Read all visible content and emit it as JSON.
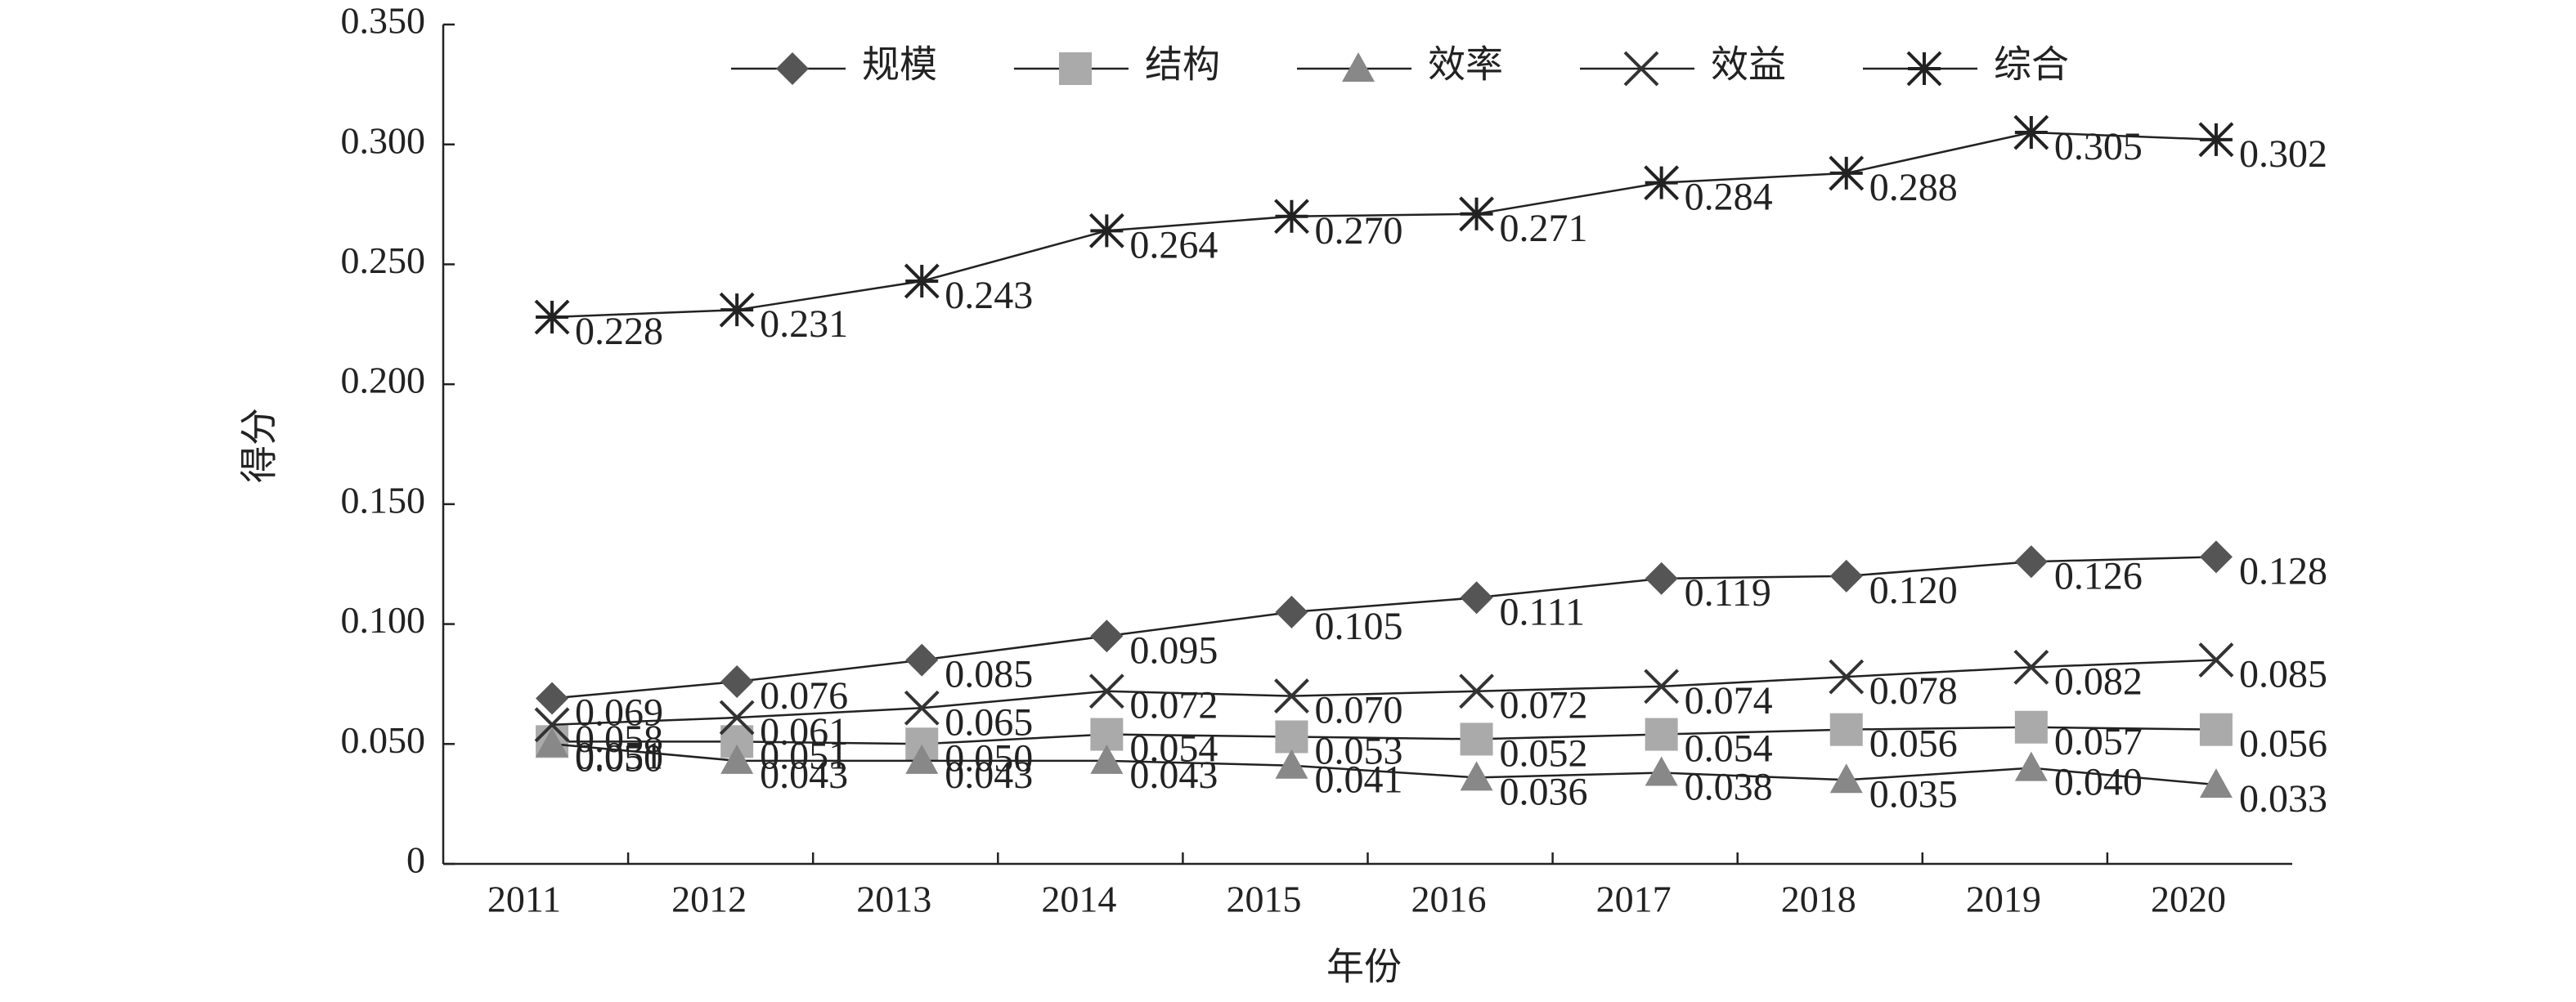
{
  "chart_data": {
    "type": "line",
    "x_label": "年份",
    "y_label": "得分",
    "categories": [
      "2011",
      "2012",
      "2013",
      "2014",
      "2015",
      "2016",
      "2017",
      "2018",
      "2019",
      "2020"
    ],
    "ylim": [
      0,
      0.35
    ],
    "yticks": [
      0,
      {
        "value": 0.05,
        "label": "0.050"
      },
      {
        "value": 0.1,
        "label": "0.100"
      },
      {
        "value": 0.15,
        "label": "0.150"
      },
      {
        "value": 0.2,
        "label": "0.200"
      },
      {
        "value": 0.25,
        "label": "0.250"
      },
      {
        "value": 0.3,
        "label": "0.300"
      },
      {
        "value": 0.35,
        "label": "0.350"
      }
    ],
    "legend": "top",
    "series": [
      {
        "name": "规模",
        "color": "#555555",
        "marker": "diamond",
        "values": [
          0.069,
          0.076,
          0.085,
          0.095,
          0.105,
          0.111,
          0.119,
          0.12,
          0.126,
          0.128
        ],
        "value_labels": [
          "0.069",
          "0.076",
          "0.085",
          "0.095",
          "0.105",
          "0.111",
          "0.119",
          "0.120",
          "0.126",
          "0.128"
        ]
      },
      {
        "name": "结构",
        "color": "#aaaaaa",
        "marker": "square",
        "values": [
          0.051,
          0.051,
          0.05,
          0.054,
          0.053,
          0.052,
          0.054,
          0.056,
          0.057,
          0.056
        ],
        "value_labels": [
          "0.051",
          "0.051",
          "0.050",
          "0.054",
          "0.053",
          "0.052",
          "0.054",
          "0.056",
          "0.057",
          "0.056"
        ]
      },
      {
        "name": "效率",
        "color": "#888888",
        "marker": "triangle",
        "values": [
          0.05,
          0.043,
          0.043,
          0.043,
          0.041,
          0.036,
          0.038,
          0.035,
          0.04,
          0.033
        ],
        "value_labels": [
          "0.050",
          "0.043",
          "0.043",
          "0.043",
          "0.041",
          "0.036",
          "0.038",
          "0.035",
          "0.040",
          "0.033"
        ]
      },
      {
        "name": "效益",
        "color": "#333333",
        "marker": "x",
        "values": [
          0.058,
          0.061,
          0.065,
          0.072,
          0.07,
          0.072,
          0.074,
          0.078,
          0.082,
          0.085
        ],
        "value_labels": [
          "0.058",
          "0.061",
          "0.065",
          "0.072",
          "0.070",
          "0.072",
          "0.074",
          "0.078",
          "0.082",
          "0.085"
        ]
      },
      {
        "name": "综合",
        "color": "#222222",
        "marker": "asterisk",
        "values": [
          0.228,
          0.231,
          0.243,
          0.264,
          0.27,
          0.271,
          0.284,
          0.288,
          0.305,
          0.302
        ],
        "value_labels": [
          "0.228",
          "0.231",
          "0.243",
          "0.264",
          "0.270",
          "0.271",
          "0.284",
          "0.288",
          "0.305",
          "0.302"
        ]
      }
    ]
  }
}
